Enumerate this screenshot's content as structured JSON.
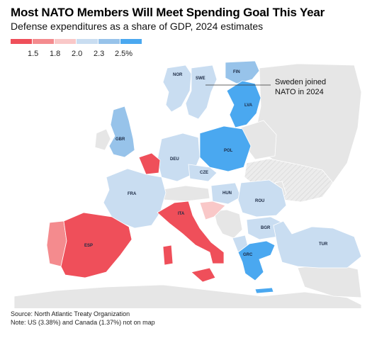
{
  "title": "Most NATO Members Will Meet Spending Goal This Year",
  "subtitle": "Defense expenditures as a share of GDP, 2024 estimates",
  "legend": {
    "labels": [
      "1.5",
      "1.8",
      "2.0",
      "2.3",
      "2.5%"
    ],
    "colors": [
      "#ef4f5a",
      "#f48b8e",
      "#f9c8c8",
      "#c9ddf1",
      "#97c3ea",
      "#4aa8f0"
    ]
  },
  "colors": {
    "nonmember": "#e6e6e6",
    "sea": "#ffffff",
    "below_1_5": "#ef4f5a",
    "1_5_to_1_8": "#f48b8e",
    "1_8_to_2_0": "#f9c8c8",
    "2_0_to_2_3": "#c9ddf1",
    "2_3_to_2_5": "#97c3ea",
    "above_2_5": "#4aa8f0"
  },
  "country_labels": {
    "nor": "NOR",
    "swe": "SWE",
    "fin": "FIN",
    "lva": "LVA",
    "gbr": "GBR",
    "deu": "DEU",
    "pol": "POL",
    "cze": "CZE",
    "fra": "FRA",
    "hun": "HUN",
    "rou": "ROU",
    "ita": "ITA",
    "bgr": "BGR",
    "esp": "ESP",
    "grc": "GRC",
    "tur": "TUR"
  },
  "annotation": [
    "Sweden joined",
    "NATO in 2024"
  ],
  "source": [
    "Source: North Atlantic Treaty Organization",
    "Note: US (3.38%) and Canada (1.37%) not on map"
  ]
}
